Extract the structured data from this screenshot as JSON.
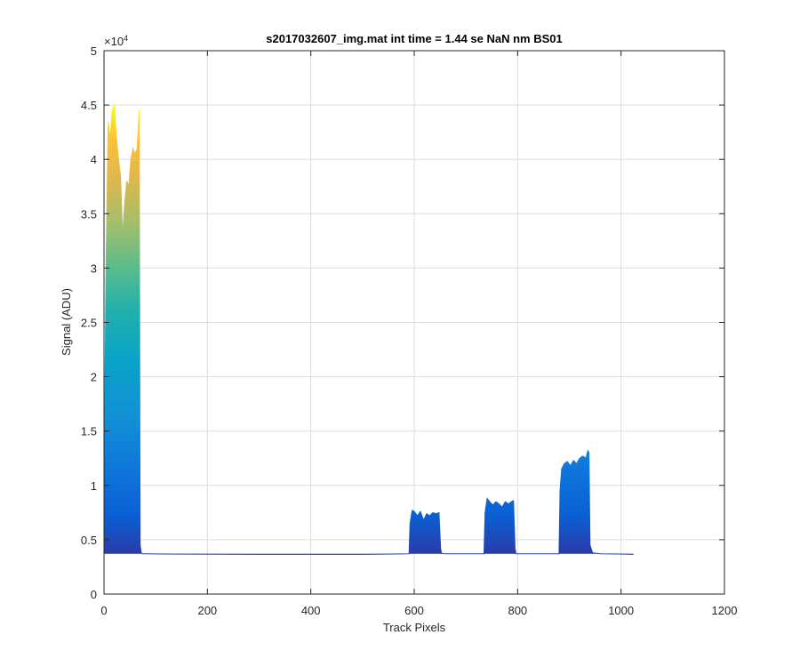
{
  "chart_data": {
    "type": "area",
    "title": "s2017032607_img.mat int time = 1.44 se  NaN nm BS01",
    "xlabel": "Track Pixels",
    "ylabel": "Signal (ADU)",
    "xlim": [
      0,
      1200
    ],
    "ylim": [
      0,
      50000
    ],
    "xticks": [
      0,
      200,
      400,
      600,
      800,
      1000,
      1200
    ],
    "xtick_labels": [
      "0",
      "200",
      "400",
      "600",
      "800",
      "1000",
      "1200"
    ],
    "yticks": [
      0,
      5000,
      10000,
      15000,
      20000,
      25000,
      30000,
      35000,
      40000,
      45000,
      50000
    ],
    "ytick_labels": [
      "0",
      "0.5",
      "1",
      "1.5",
      "2",
      "2.5",
      "3",
      "3.5",
      "4",
      "4.5",
      "5"
    ],
    "y_exponent_label": "×10",
    "y_exponent_power": "4",
    "grid": true,
    "colormap": "parula",
    "baseline": 3700,
    "series": [
      {
        "x": [
          0,
          2,
          4,
          8,
          12,
          16,
          20,
          24,
          28,
          32,
          36,
          40,
          44,
          48,
          52,
          56,
          60,
          64,
          68,
          70,
          72,
          74,
          80,
          120,
          300,
          500,
          590,
          592,
          596,
          600,
          606,
          612,
          618,
          624,
          630,
          636,
          642,
          648,
          651,
          653,
          660,
          700,
          735,
          737,
          741,
          746,
          752,
          758,
          764,
          770,
          776,
          782,
          788,
          792,
          795,
          797,
          805,
          850,
          880,
          882,
          885,
          890,
          896,
          902,
          908,
          914,
          920,
          926,
          932,
          936,
          938,
          940,
          945,
          960,
          1000,
          1024
        ],
        "y": [
          3700,
          20000,
          30000,
          43500,
          42000,
          44500,
          45000,
          42000,
          40000,
          38500,
          33000,
          36000,
          38000,
          37500,
          40000,
          41000,
          40500,
          41000,
          44500,
          4500,
          3800,
          3700,
          3700,
          3680,
          3650,
          3650,
          3700,
          6500,
          7700,
          7600,
          7200,
          7600,
          6800,
          7400,
          7200,
          7500,
          7400,
          7500,
          4200,
          3750,
          3700,
          3700,
          3700,
          7500,
          8800,
          8500,
          8200,
          8500,
          8300,
          8000,
          8500,
          8300,
          8500,
          8600,
          4200,
          3700,
          3700,
          3700,
          3700,
          9500,
          11500,
          12000,
          12200,
          11800,
          12300,
          12000,
          12500,
          12700,
          12500,
          13200,
          13000,
          4500,
          3800,
          3700,
          3680,
          3650
        ]
      }
    ]
  }
}
